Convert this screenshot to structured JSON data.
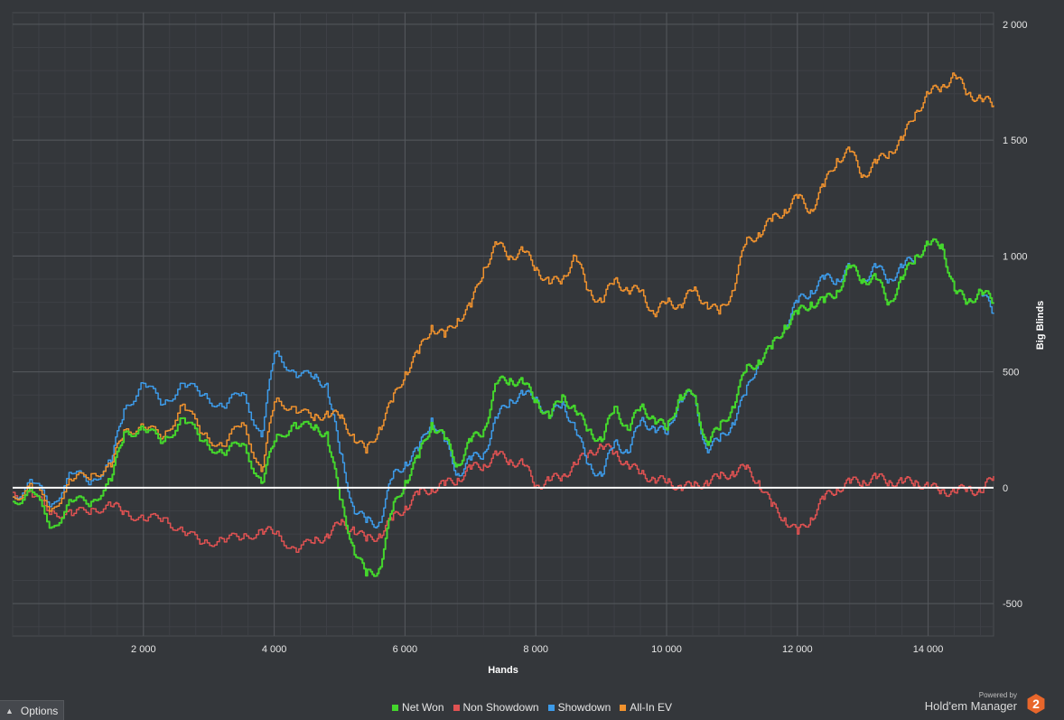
{
  "chart_data": {
    "type": "line",
    "xlabel": "Hands",
    "ylabel": "Big Blinds",
    "xlim": [
      0,
      15000
    ],
    "ylim": [
      -640,
      2050
    ],
    "x_ticks": [
      2000,
      4000,
      6000,
      8000,
      10000,
      12000,
      14000
    ],
    "x_tick_labels": [
      "2 000",
      "4 000",
      "6 000",
      "8 000",
      "10 000",
      "12 000",
      "14 000"
    ],
    "y_ticks": [
      -500,
      0,
      500,
      1000,
      1500,
      2000
    ],
    "y_tick_labels": [
      "-500",
      "0",
      "500",
      "1 000",
      "1 500",
      "2 000"
    ],
    "grid": true,
    "legend_position": "bottom-center",
    "series": [
      {
        "name": "Net Won",
        "color": "#44d62c",
        "x": [
          0,
          300,
          600,
          900,
          1200,
          1500,
          1700,
          2000,
          2300,
          2600,
          2900,
          3200,
          3500,
          3800,
          4000,
          4300,
          4600,
          4800,
          5000,
          5200,
          5400,
          5600,
          5800,
          6000,
          6200,
          6400,
          6600,
          6800,
          7000,
          7200,
          7400,
          7600,
          7800,
          8000,
          8200,
          8400,
          8600,
          8800,
          9000,
          9200,
          9400,
          9600,
          9800,
          10000,
          10200,
          10400,
          10600,
          10800,
          11000,
          11200,
          11400,
          11600,
          11800,
          12000,
          12200,
          12400,
          12600,
          12800,
          13000,
          13200,
          13400,
          13600,
          13800,
          14000,
          14200,
          14400,
          14600,
          14800,
          15000
        ],
        "y": [
          -60,
          -20,
          -170,
          -60,
          -60,
          30,
          240,
          250,
          200,
          300,
          200,
          150,
          190,
          20,
          200,
          280,
          250,
          240,
          -50,
          -250,
          -380,
          -350,
          -100,
          30,
          130,
          280,
          210,
          100,
          200,
          250,
          450,
          470,
          450,
          380,
          300,
          400,
          330,
          250,
          200,
          350,
          250,
          350,
          300,
          250,
          400,
          400,
          200,
          250,
          350,
          500,
          550,
          600,
          700,
          750,
          800,
          800,
          850,
          950,
          900,
          900,
          800,
          900,
          1000,
          1050,
          1050,
          850,
          800,
          850,
          800
        ]
      },
      {
        "name": "Non Showdown",
        "color": "#e05252",
        "x": [
          0,
          300,
          600,
          900,
          1200,
          1500,
          1700,
          2000,
          2300,
          2600,
          2900,
          3200,
          3500,
          3800,
          4000,
          4300,
          4600,
          4800,
          5000,
          5200,
          5400,
          5600,
          5800,
          6000,
          6200,
          6400,
          6600,
          6800,
          7000,
          7200,
          7400,
          7600,
          7800,
          8000,
          8200,
          8400,
          8600,
          8800,
          9000,
          9200,
          9400,
          9600,
          9800,
          10000,
          10200,
          10400,
          10600,
          10800,
          11000,
          11200,
          11400,
          11600,
          11800,
          12000,
          12200,
          12400,
          12600,
          12800,
          13000,
          13200,
          13400,
          13600,
          13800,
          14000,
          14200,
          14400,
          14600,
          14800,
          15000
        ],
        "y": [
          -20,
          -40,
          -100,
          -120,
          -90,
          -80,
          -100,
          -140,
          -130,
          -190,
          -240,
          -220,
          -220,
          -180,
          -200,
          -260,
          -240,
          -200,
          -160,
          -170,
          -230,
          -200,
          -140,
          -80,
          -30,
          0,
          10,
          40,
          80,
          100,
          140,
          120,
          100,
          10,
          30,
          50,
          100,
          150,
          180,
          150,
          100,
          60,
          40,
          20,
          10,
          0,
          30,
          40,
          70,
          80,
          30,
          -80,
          -130,
          -200,
          -130,
          -50,
          0,
          20,
          30,
          40,
          30,
          20,
          30,
          0,
          -10,
          -20,
          0,
          -20,
          50
        ]
      },
      {
        "name": "Showdown",
        "color": "#3d9be9",
        "x": [
          0,
          300,
          600,
          900,
          1200,
          1500,
          1700,
          2000,
          2300,
          2600,
          2900,
          3200,
          3500,
          3800,
          4000,
          4300,
          4600,
          4800,
          5000,
          5200,
          5400,
          5600,
          5800,
          6000,
          6200,
          6400,
          6600,
          6800,
          7000,
          7200,
          7400,
          7600,
          7800,
          8000,
          8200,
          8400,
          8600,
          8800,
          9000,
          9200,
          9400,
          9600,
          9800,
          10000,
          10200,
          10400,
          10600,
          10800,
          11000,
          11200,
          11400,
          11600,
          11800,
          12000,
          12200,
          12400,
          12600,
          12800,
          13000,
          13200,
          13400,
          13600,
          13800,
          14000,
          14200,
          14400,
          14600,
          14800,
          15000
        ],
        "y": [
          -40,
          20,
          -70,
          60,
          30,
          110,
          340,
          450,
          360,
          450,
          400,
          350,
          410,
          220,
          580,
          500,
          470,
          450,
          150,
          -80,
          -150,
          -150,
          40,
          110,
          160,
          300,
          200,
          60,
          120,
          150,
          300,
          380,
          400,
          390,
          300,
          370,
          250,
          100,
          50,
          200,
          150,
          290,
          260,
          230,
          390,
          400,
          170,
          200,
          280,
          400,
          550,
          600,
          700,
          800,
          850,
          900,
          900,
          950,
          900,
          950,
          900,
          950,
          1000,
          1050,
          1050,
          850,
          800,
          850,
          750
        ]
      },
      {
        "name": "All-In EV",
        "color": "#f0922e",
        "x": [
          0,
          300,
          600,
          900,
          1200,
          1500,
          1700,
          2000,
          2300,
          2600,
          2900,
          3200,
          3500,
          3800,
          4000,
          4300,
          4600,
          4800,
          5000,
          5200,
          5400,
          5600,
          5800,
          6000,
          6200,
          6400,
          6600,
          6800,
          7000,
          7200,
          7400,
          7600,
          7800,
          8000,
          8200,
          8400,
          8600,
          8800,
          9000,
          9200,
          9400,
          9600,
          9800,
          10000,
          10200,
          10400,
          10600,
          10800,
          11000,
          11200,
          11400,
          11600,
          11800,
          12000,
          12200,
          12400,
          12600,
          12800,
          13000,
          13200,
          13400,
          13600,
          13800,
          14000,
          14200,
          14400,
          14600,
          14800,
          15000
        ],
        "y": [
          -40,
          0,
          -90,
          30,
          60,
          90,
          250,
          260,
          220,
          360,
          230,
          180,
          280,
          70,
          370,
          350,
          290,
          330,
          300,
          230,
          150,
          260,
          370,
          500,
          580,
          700,
          650,
          730,
          780,
          950,
          1050,
          1000,
          1020,
          950,
          880,
          900,
          1000,
          850,
          800,
          900,
          850,
          850,
          750,
          800,
          790,
          850,
          800,
          750,
          850,
          1050,
          1100,
          1150,
          1200,
          1250,
          1200,
          1300,
          1420,
          1450,
          1350,
          1400,
          1450,
          1500,
          1620,
          1700,
          1730,
          1780,
          1700,
          1680,
          1650
        ]
      }
    ]
  },
  "ui": {
    "options_label": "Options",
    "brand_small": "Powered by",
    "brand_name": "Hold'em Manager",
    "brand_logo_text": "2"
  }
}
